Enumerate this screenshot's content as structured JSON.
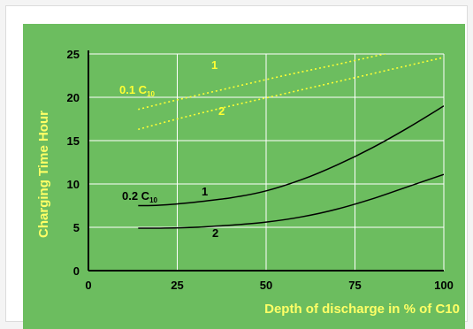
{
  "chart_data": {
    "type": "line",
    "xlabel": "Depth of discharge in % of C10",
    "ylabel": "Charging Time Hour",
    "xlim": [
      0,
      100
    ],
    "ylim": [
      0,
      25
    ],
    "x_ticks": [
      "0",
      "25",
      "50",
      "75",
      "100"
    ],
    "y_ticks": [
      "0",
      "5",
      "10",
      "15",
      "20",
      "25"
    ],
    "grid": true,
    "colors": {
      "panel": "#6cbd5f",
      "grid": "#ffffff",
      "axis": "#000000",
      "tick_text": "#000000",
      "axis_title": "#ffff66",
      "series_black": "#000000",
      "series_yellow": "#ffff33"
    },
    "groups": [
      {
        "rate_main": "0.1 C",
        "rate_sub": "10",
        "color": "#ffff33",
        "dashed": true,
        "series": [
          {
            "label": "1",
            "points": [
              [
                14,
                18.6
              ],
              [
                25,
                19.7
              ],
              [
                40,
                21.1
              ],
              [
                55,
                22.5
              ],
              [
                70,
                23.8
              ],
              [
                100,
                26.5
              ]
            ]
          },
          {
            "label": "2",
            "points": [
              [
                14,
                16.3
              ],
              [
                25,
                17.5
              ],
              [
                40,
                19.0
              ],
              [
                55,
                20.4
              ],
              [
                70,
                21.8
              ],
              [
                100,
                24.6
              ]
            ]
          }
        ]
      },
      {
        "rate_main": "0.2 C",
        "rate_sub": "10",
        "color": "#000000",
        "dashed": false,
        "series": [
          {
            "label": "1",
            "points": [
              [
                14,
                7.5
              ],
              [
                20,
                7.55
              ],
              [
                30,
                7.9
              ],
              [
                40,
                8.4
              ],
              [
                50,
                9.2
              ],
              [
                60,
                10.5
              ],
              [
                70,
                12.2
              ],
              [
                80,
                14.2
              ],
              [
                90,
                16.5
              ],
              [
                100,
                19.0
              ]
            ]
          },
          {
            "label": "2",
            "points": [
              [
                14,
                4.9
              ],
              [
                20,
                4.9
              ],
              [
                30,
                5.0
              ],
              [
                40,
                5.25
              ],
              [
                50,
                5.6
              ],
              [
                60,
                6.2
              ],
              [
                70,
                7.1
              ],
              [
                80,
                8.3
              ],
              [
                90,
                9.7
              ],
              [
                100,
                11.1
              ]
            ]
          }
        ]
      }
    ]
  }
}
